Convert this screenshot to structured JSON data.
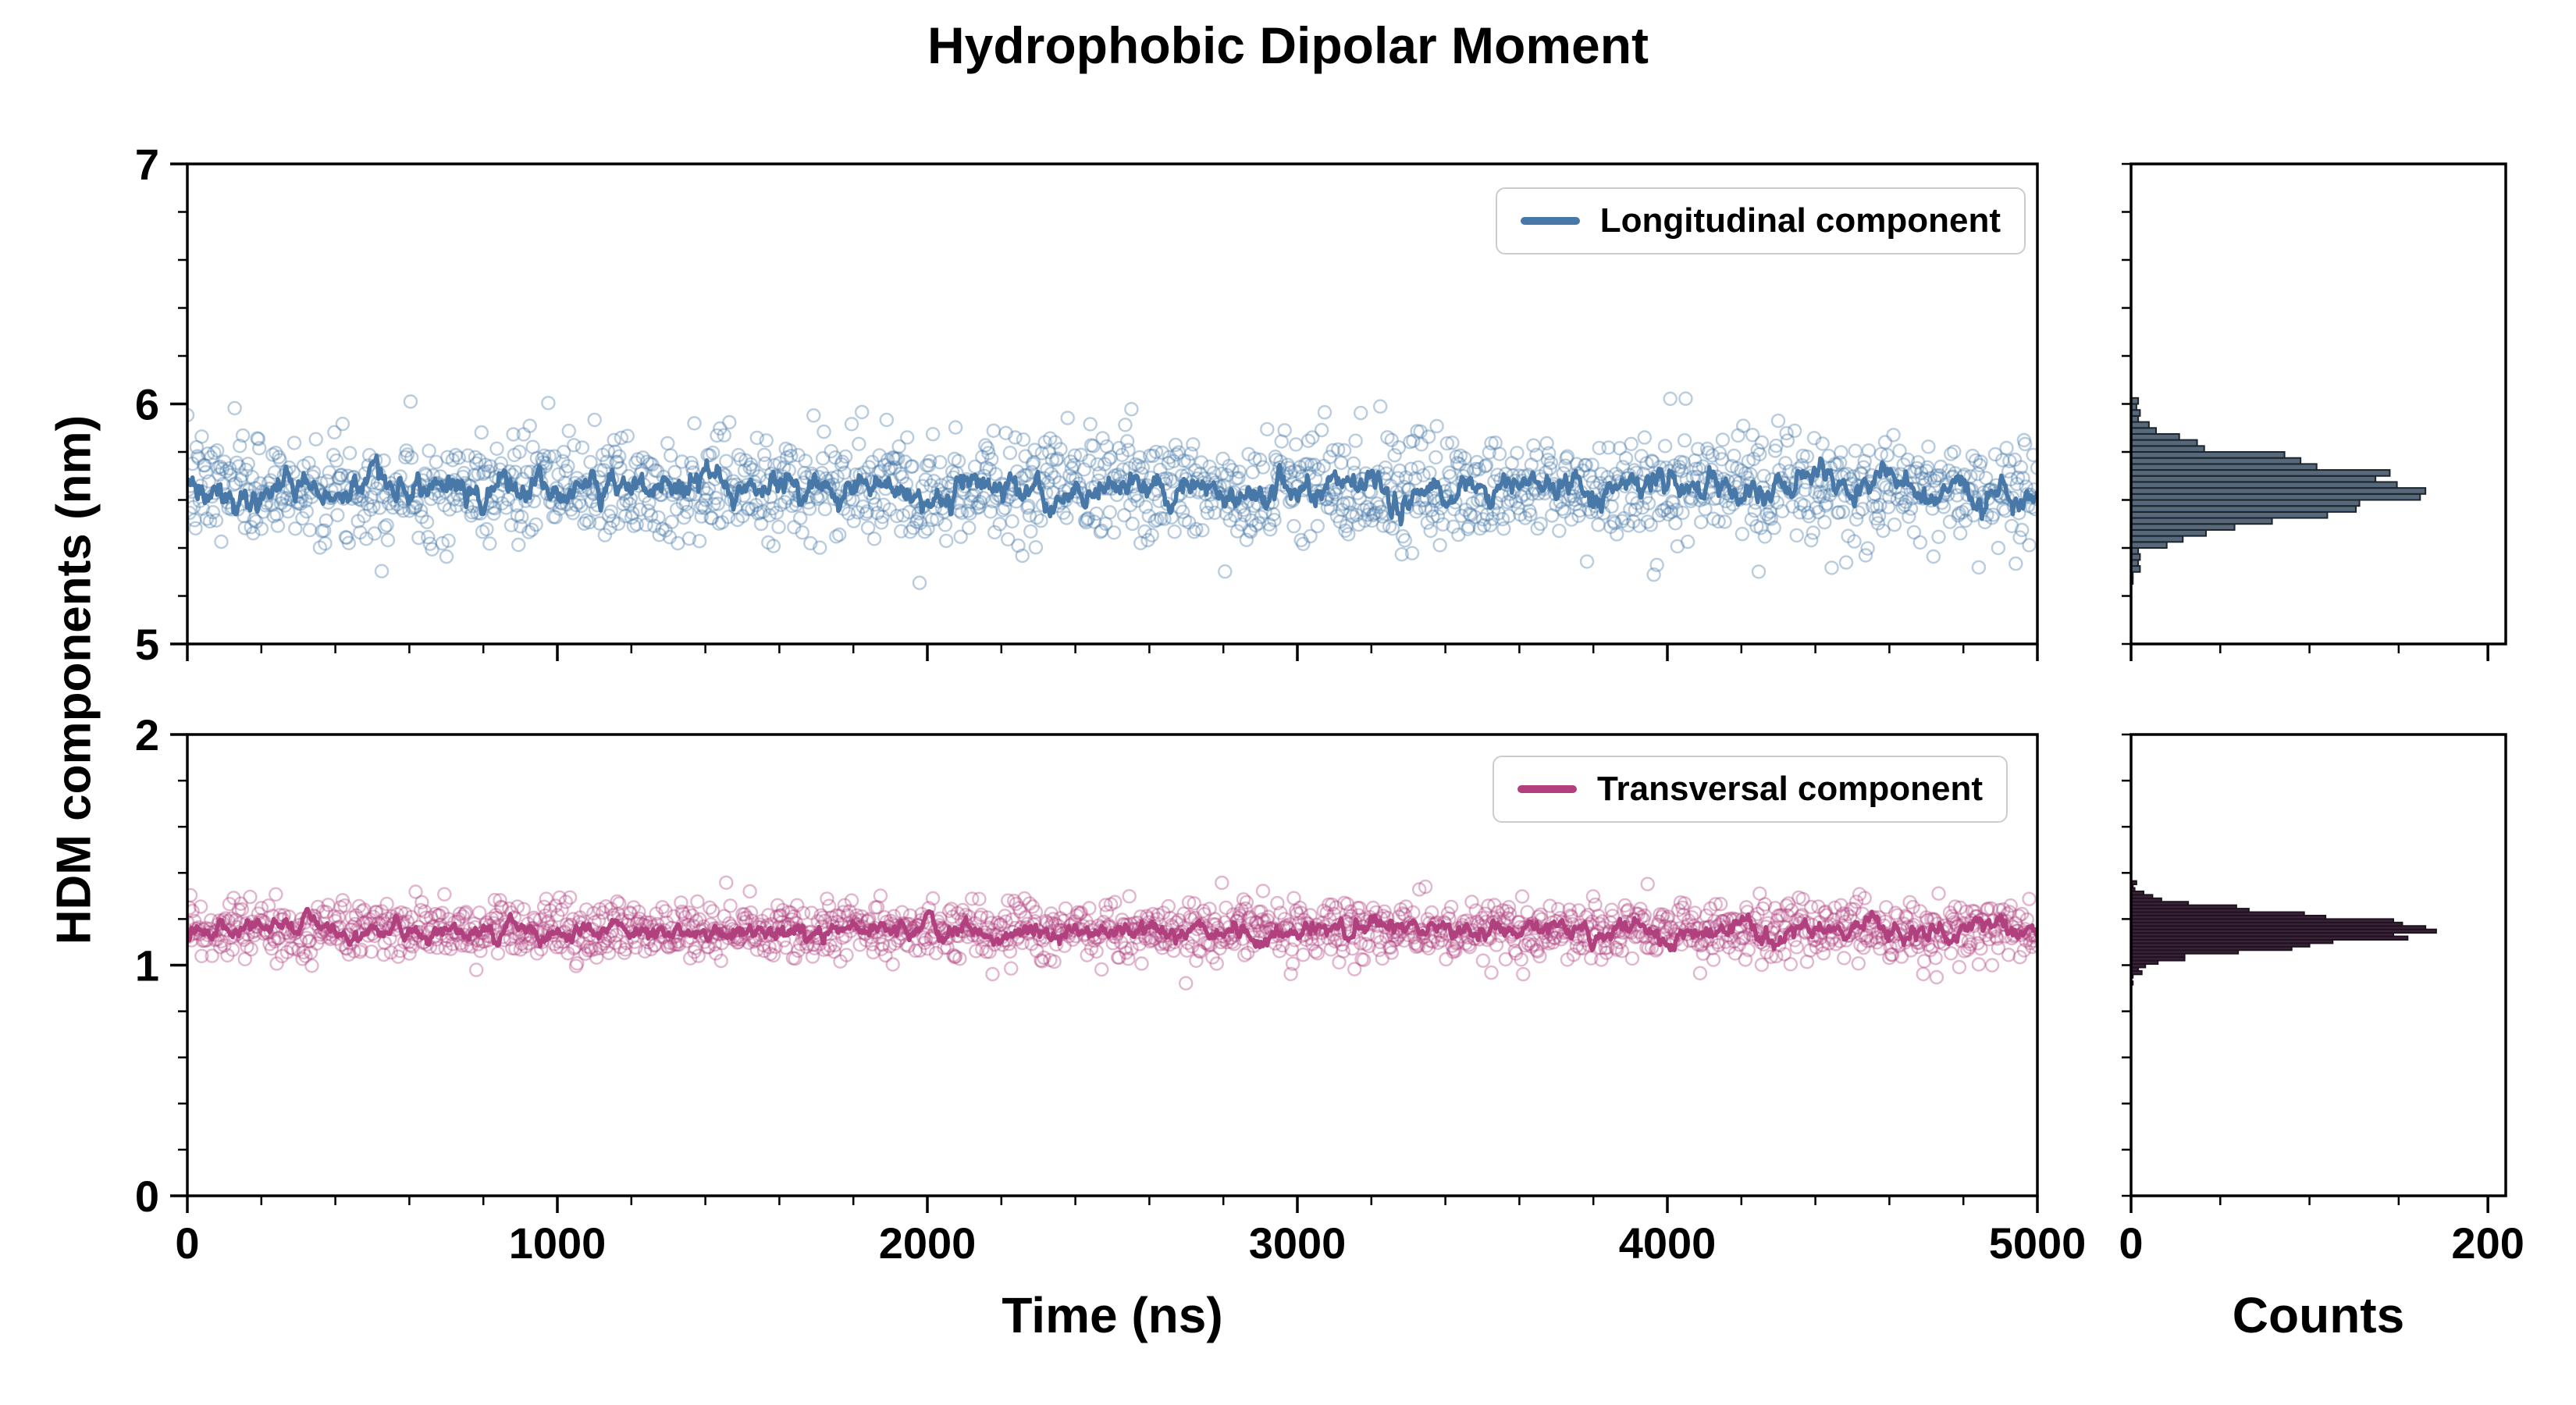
{
  "title": "Hydrophobic Dipolar Moment",
  "ylabel": "HDM components (nm)",
  "xlabel_time": "Time (ns)",
  "xlabel_counts": "Counts",
  "legend": {
    "longitudinal": "Longitudinal component",
    "transversal": "Transversal component"
  },
  "colors": {
    "longitudinal_line": "#4878A8",
    "longitudinal_marker": "#4878A8",
    "transversal_line": "#B0407E",
    "transversal_marker": "#B0407E",
    "hist_long_fill": "#56687A",
    "hist_long_edge": "#1C242C",
    "hist_trans_fill": "#3A2339",
    "hist_trans_edge": "#1E121E",
    "axis": "#000000"
  },
  "chart_data": [
    {
      "id": "longitudinal-timeseries",
      "type": "scatter",
      "title": "",
      "xlabel": "Time (ns)",
      "ylabel": "HDM components (nm)",
      "xlim": [
        0,
        5000
      ],
      "ylim": [
        5,
        7
      ],
      "x_ticks": [
        0,
        1000,
        2000,
        3000,
        4000,
        5000
      ],
      "y_ticks": [
        5,
        6,
        7
      ],
      "x_minor_step": 200,
      "y_minor_step": 0.2,
      "show_x_tick_labels": false,
      "show_y_tick_labels": true,
      "legend_label": "Longitudinal component",
      "legend_position": "upper right",
      "series": [
        {
          "name": "Longitudinal component",
          "marker": "open-circle",
          "marker_alpha": 0.38,
          "color": "#4878A8",
          "n_points": 1800,
          "x_range": [
            0,
            5000
          ],
          "mean": 5.65,
          "std": 0.11,
          "line_phi": 0.85,
          "line_sigma": 0.02,
          "seed": 7
        }
      ]
    },
    {
      "id": "longitudinal-histogram",
      "type": "histogram",
      "orientation": "horizontal",
      "source": "longitudinal-timeseries",
      "bin_width": 0.025,
      "xlim": [
        0,
        210
      ],
      "ylim": [
        5,
        7
      ],
      "x_ticks": [
        0,
        200
      ],
      "x_minor_step": 50,
      "y_minor_step": 0.2,
      "show_x_tick_labels": false,
      "bar_fill": "#56687A",
      "bar_edge": "#1C242C"
    },
    {
      "id": "transversal-timeseries",
      "type": "scatter",
      "title": "",
      "xlabel": "Time (ns)",
      "ylabel": "HDM components (nm)",
      "xlim": [
        0,
        5000
      ],
      "ylim": [
        0,
        2
      ],
      "x_ticks": [
        0,
        1000,
        2000,
        3000,
        4000,
        5000
      ],
      "y_ticks": [
        0,
        1,
        2
      ],
      "x_minor_step": 200,
      "y_minor_step": 0.2,
      "show_x_tick_labels": true,
      "show_y_tick_labels": true,
      "legend_label": "Transversal component",
      "legend_position": "upper right",
      "series": [
        {
          "name": "Transversal component",
          "marker": "open-circle",
          "marker_alpha": 0.38,
          "color": "#B0407E",
          "n_points": 1800,
          "x_range": [
            0,
            5000
          ],
          "mean": 1.15,
          "std": 0.065,
          "line_phi": 0.85,
          "line_sigma": 0.013,
          "seed": 99
        }
      ]
    },
    {
      "id": "transversal-histogram",
      "type": "histogram",
      "orientation": "horizontal",
      "source": "transversal-timeseries",
      "bin_width": 0.015,
      "xlim": [
        0,
        210
      ],
      "ylim": [
        0,
        2
      ],
      "x_ticks": [
        0,
        200
      ],
      "x_minor_step": 50,
      "y_minor_step": 0.2,
      "show_x_tick_labels": true,
      "bar_fill": "#3A2339",
      "bar_edge": "#1E121E"
    }
  ]
}
